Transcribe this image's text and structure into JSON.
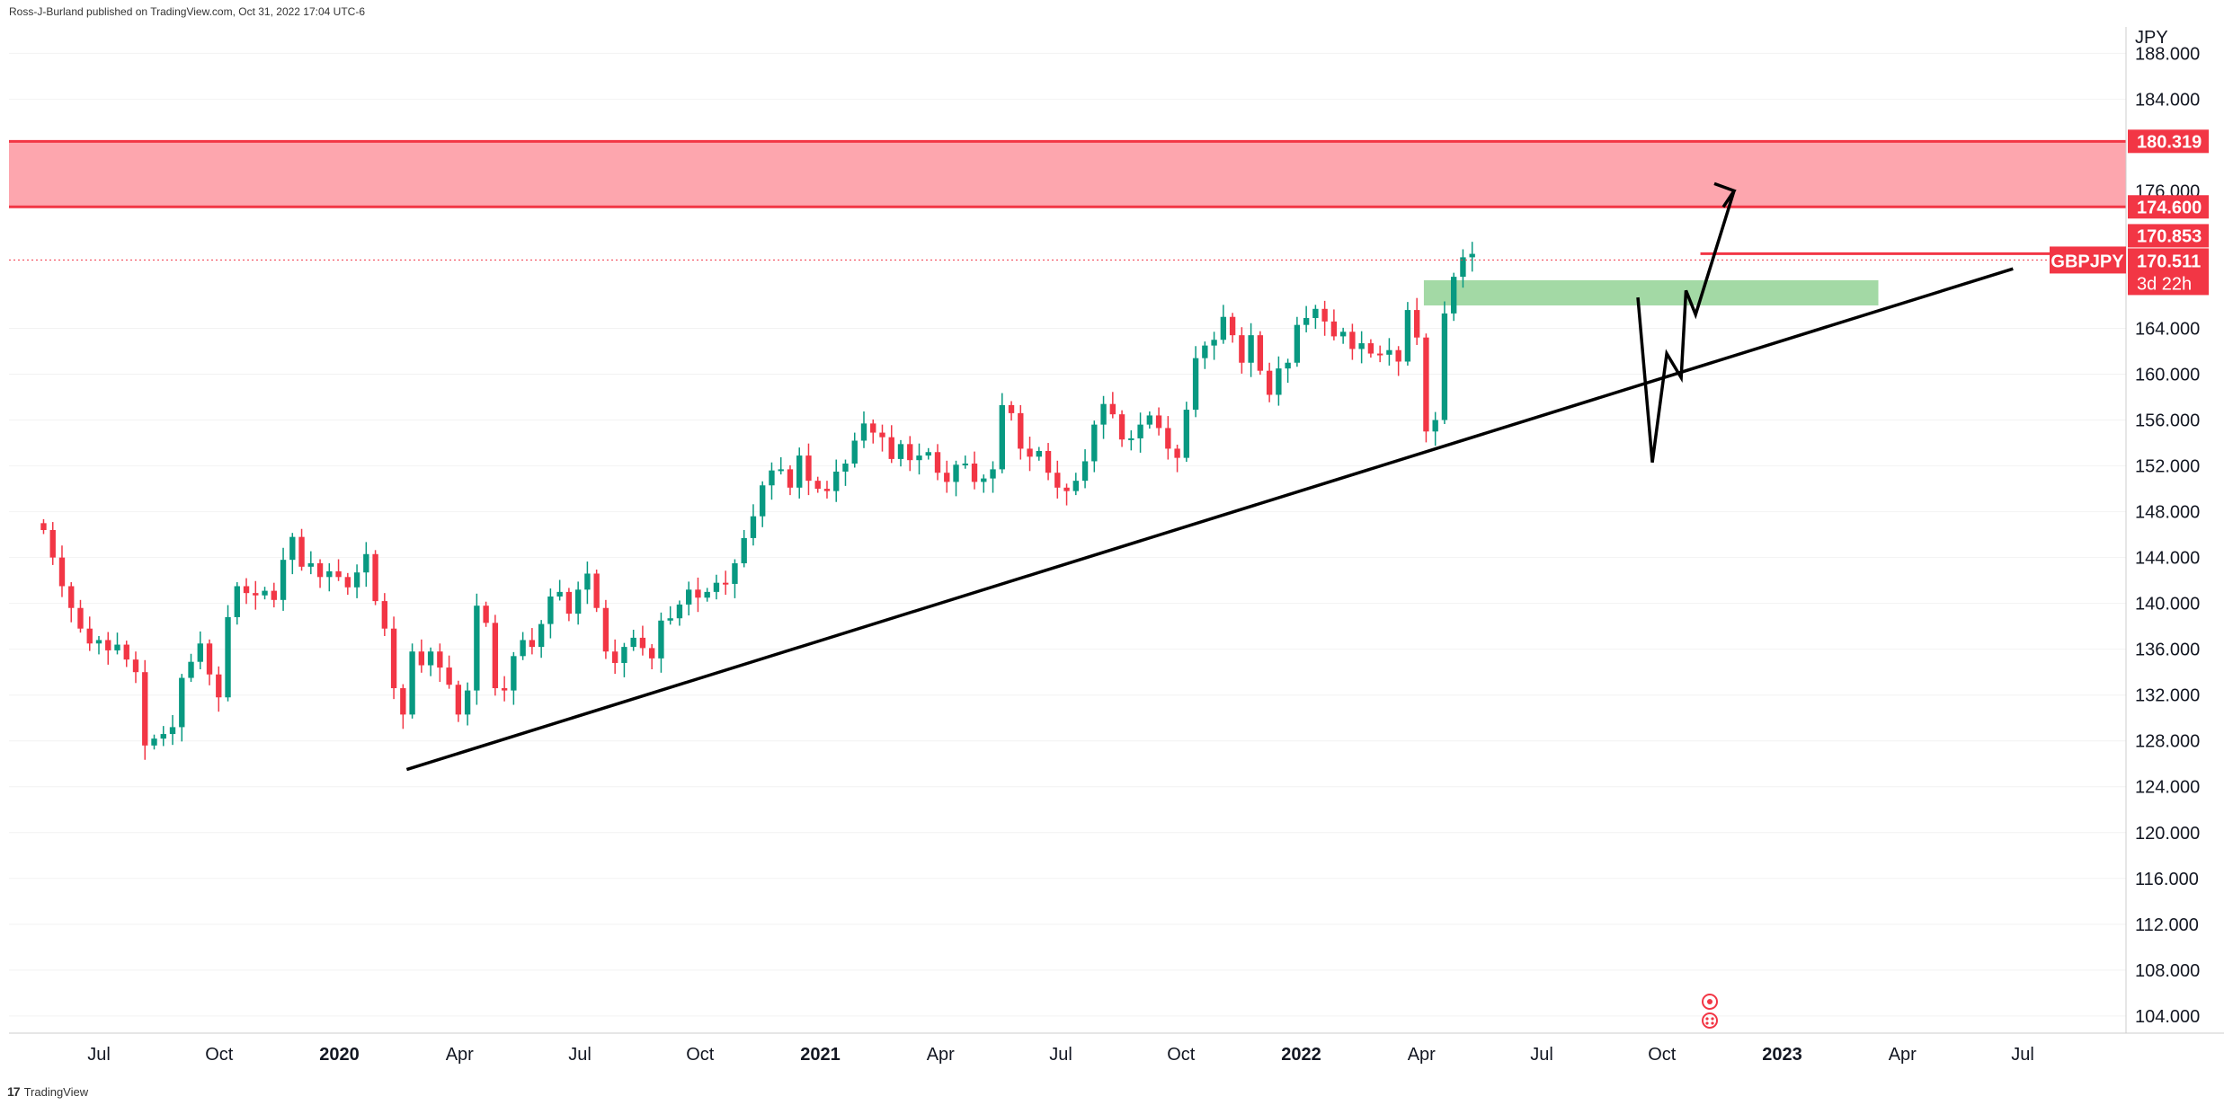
{
  "header": {
    "published_by": "Ross-J-Burland published on TradingView.com, Oct 31, 2022 17:04 UTC-6"
  },
  "footer": {
    "brand": "TradingView",
    "logo_glyph": "17"
  },
  "colors": {
    "up": "#089981",
    "down": "#f23645",
    "zone_red": "#fda6ae",
    "zone_green": "#a3d9a5",
    "red_line": "#f23645",
    "trend": "#000000",
    "badge": "#f23645",
    "grid": "#e6e6e6"
  },
  "chart_data": {
    "type": "candlestick",
    "title": "GBPJPY",
    "timeframe": "1W",
    "currency_label": "JPY",
    "ylim": [
      102.5,
      190.3
    ],
    "y_ticks": [
      "188.000",
      "184.000",
      "176.000",
      "164.000",
      "160.000",
      "156.000",
      "152.000",
      "148.000",
      "144.000",
      "140.000",
      "136.000",
      "132.000",
      "128.000",
      "124.000",
      "120.000",
      "116.000",
      "112.000",
      "108.000",
      "104.000"
    ],
    "x_ticks": [
      {
        "label": "Jul",
        "t": 2019.5,
        "year": false
      },
      {
        "label": "Oct",
        "t": 2019.75,
        "year": false
      },
      {
        "label": "2020",
        "t": 2020.0,
        "year": true
      },
      {
        "label": "Apr",
        "t": 2020.25,
        "year": false
      },
      {
        "label": "Jul",
        "t": 2020.5,
        "year": false
      },
      {
        "label": "Oct",
        "t": 2020.75,
        "year": false
      },
      {
        "label": "2021",
        "t": 2021.0,
        "year": true
      },
      {
        "label": "Apr",
        "t": 2021.25,
        "year": false
      },
      {
        "label": "Jul",
        "t": 2021.5,
        "year": false
      },
      {
        "label": "Oct",
        "t": 2021.75,
        "year": false
      },
      {
        "label": "2022",
        "t": 2022.0,
        "year": true
      },
      {
        "label": "Apr",
        "t": 2022.25,
        "year": false
      },
      {
        "label": "Jul",
        "t": 2022.5,
        "year": false
      },
      {
        "label": "Oct",
        "t": 2022.75,
        "year": false
      },
      {
        "label": "2023",
        "t": 2023.0,
        "year": true
      },
      {
        "label": "Apr",
        "t": 2023.25,
        "year": false
      },
      {
        "label": "Jul",
        "t": 2023.5,
        "year": false
      }
    ],
    "closes": [
      146.4,
      144.0,
      141.5,
      139.6,
      137.8,
      136.5,
      136.8,
      135.9,
      136.4,
      135.1,
      134.0,
      127.6,
      128.2,
      128.6,
      129.2,
      133.5,
      134.9,
      136.5,
      133.8,
      131.8,
      138.8,
      141.5,
      140.9,
      140.7,
      141.1,
      140.3,
      143.8,
      145.8,
      143.2,
      143.5,
      142.3,
      142.8,
      142.3,
      141.4,
      142.7,
      144.3,
      140.2,
      137.8,
      132.6,
      130.3,
      135.8,
      134.6,
      135.8,
      134.4,
      132.9,
      130.3,
      132.4,
      139.8,
      138.3,
      132.6,
      132.4,
      135.4,
      136.8,
      136.2,
      138.2,
      140.6,
      141.0,
      139.1,
      141.2,
      142.6,
      139.6,
      135.8,
      134.8,
      136.2,
      137.0,
      136.1,
      135.2,
      138.5,
      138.7,
      139.9,
      141.2,
      140.5,
      141.0,
      141.8,
      141.7,
      143.5,
      145.7,
      147.6,
      150.3,
      151.6,
      151.7,
      150.1,
      152.9,
      150.7,
      150.0,
      149.8,
      151.5,
      152.2,
      154.2,
      155.7,
      154.9,
      154.5,
      152.6,
      153.9,
      152.5,
      152.9,
      153.2,
      151.4,
      150.6,
      152.1,
      152.2,
      150.6,
      150.9,
      151.7,
      157.3,
      156.6,
      153.5,
      152.8,
      153.3,
      151.4,
      150.1,
      149.8,
      150.7,
      152.4,
      155.6,
      157.4,
      156.5,
      154.3,
      154.4,
      155.6,
      156.4,
      155.3,
      153.5,
      152.7,
      156.9,
      161.4,
      162.5,
      163.0,
      165.0,
      163.4,
      161.0,
      163.4,
      160.3,
      158.2,
      160.5,
      161.0,
      164.3,
      164.9,
      165.7,
      164.6,
      163.3,
      163.7,
      162.2,
      162.7,
      161.8,
      161.7,
      162.1,
      161.1,
      165.6,
      163.2,
      155.0,
      156.0,
      165.3,
      168.5,
      170.2,
      170.5
    ],
    "zones": [
      {
        "name": "resistance-zone",
        "from": 174.6,
        "to": 180.319
      },
      {
        "name": "breakout-zone",
        "from": 166.0,
        "to": 168.2
      }
    ],
    "current_price": 170.511,
    "labels": {
      "ticker": "GBPJPY",
      "countdown": "3d 22h",
      "zone_top": "180.319",
      "zone_bottom": "174.600",
      "level": "170.853",
      "price": "170.511"
    }
  }
}
